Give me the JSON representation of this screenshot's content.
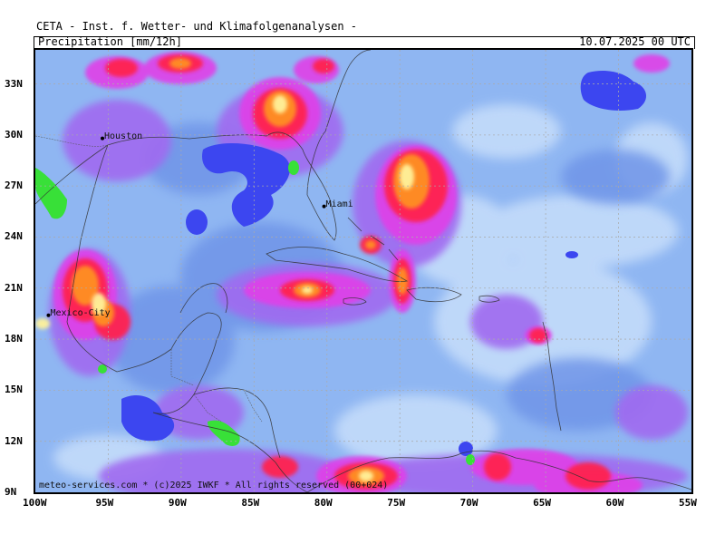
{
  "header": {
    "org_line": "CETA - Inst. f. Wetter- und Klimafolgenanalysen -",
    "product": "Precipitation [mm/12h]",
    "valid_time": "10.07.2025 00 UTC"
  },
  "map": {
    "lat_labels": [
      "33N",
      "30N",
      "27N",
      "24N",
      "21N",
      "18N",
      "15N",
      "12N",
      "9N"
    ],
    "lon_labels": [
      "100W",
      "95W",
      "90W",
      "85W",
      "80W",
      "75W",
      "70W",
      "65W",
      "60W",
      "55W"
    ],
    "lat_values": [
      33,
      30,
      27,
      24,
      21,
      18,
      15,
      12,
      9
    ],
    "lon_values": [
      -100,
      -95,
      -90,
      -85,
      -80,
      -75,
      -70,
      -65,
      -60,
      -55
    ],
    "cities": [
      {
        "name": "Houston",
        "lat": 29.8,
        "lon": -95.4
      },
      {
        "name": "Miami",
        "lat": 25.8,
        "lon": -80.2
      },
      {
        "name": "Mexico-City",
        "lat": 19.4,
        "lon": -99.1
      }
    ],
    "copyright": "meteo-services.com * (c)2025 IWKF * All rights reserved (00+024)",
    "colors": {
      "background": "#8fb6f2",
      "light": "#c4dcfa",
      "mid": "#6f95e8",
      "purple": "#a06af0",
      "magenta": "#e040e8",
      "red": "#ff2050",
      "orange": "#ff9020",
      "yellow": "#fff29a",
      "dryblue": "#3c46f0",
      "drygreen": "#38e038"
    }
  }
}
